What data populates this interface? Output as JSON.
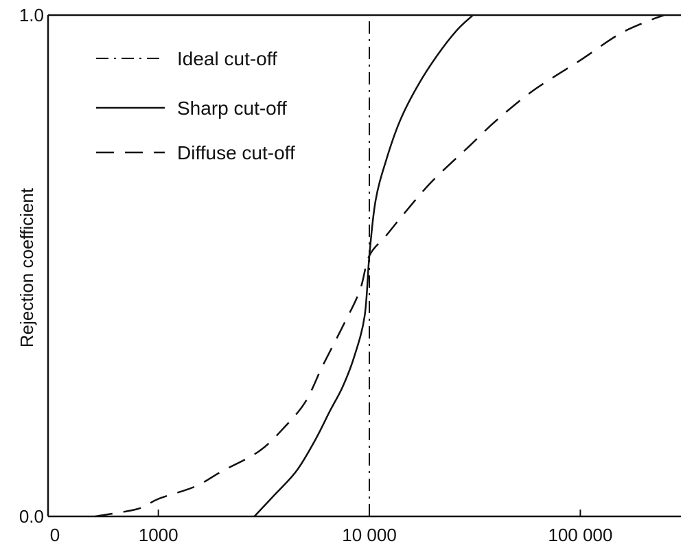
{
  "chart_data": {
    "type": "line",
    "title": "",
    "xlabel": "",
    "ylabel": "Rejection coefficient",
    "x_scale": "log",
    "xlim": [
      300,
      300000
    ],
    "ylim": [
      0.0,
      1.0
    ],
    "x_ticks": [
      {
        "value": 1000,
        "label": "1000"
      },
      {
        "value": 10000,
        "label": "10 000"
      },
      {
        "value": 100000,
        "label": "100 000"
      }
    ],
    "x_extra_label": "0",
    "y_ticks": [
      {
        "value": 0.0,
        "label": "0.0"
      },
      {
        "value": 1.0,
        "label": "1.0"
      }
    ],
    "grid": false,
    "legend_position": "top-left",
    "series": [
      {
        "name": "Ideal cut-off",
        "line_style": "dash-dot",
        "x": [
          10000,
          10000
        ],
        "y": [
          0.0,
          1.0
        ]
      },
      {
        "name": "Sharp cut-off",
        "line_style": "solid",
        "x": [
          2850,
          3500,
          4500,
          5500,
          6500,
          7500,
          8500,
          9500,
          10000,
          10700,
          12000,
          14000,
          17000,
          21000,
          26000,
          31000
        ],
        "y": [
          0.0,
          0.04,
          0.09,
          0.15,
          0.21,
          0.26,
          0.32,
          0.4,
          0.52,
          0.63,
          0.71,
          0.79,
          0.86,
          0.92,
          0.97,
          1.0
        ]
      },
      {
        "name": "Diffuse cut-off",
        "line_style": "dashed",
        "x": [
          500,
          800,
          1000,
          1500,
          2000,
          3000,
          4000,
          5000,
          6000,
          7500,
          9000,
          10000,
          12000,
          15000,
          20000,
          30000,
          40000,
          60000,
          100000,
          150000,
          200000,
          250000
        ],
        "y": [
          0.0,
          0.015,
          0.035,
          0.06,
          0.09,
          0.13,
          0.18,
          0.23,
          0.3,
          0.38,
          0.45,
          0.52,
          0.56,
          0.61,
          0.67,
          0.74,
          0.79,
          0.85,
          0.91,
          0.96,
          0.985,
          1.0
        ]
      }
    ]
  }
}
